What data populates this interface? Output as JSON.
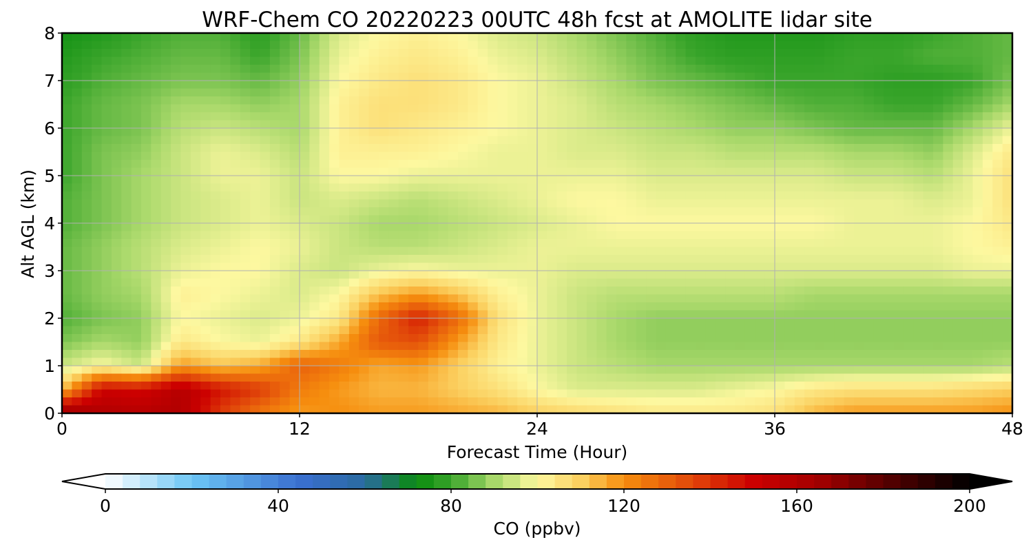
{
  "chart_data": {
    "type": "heatmap",
    "title": "WRF-Chem CO  20220223 00UTC 48h fcst at AMOLITE lidar site",
    "xlabel": "Forecast Time (Hour)",
    "ylabel": "Alt AGL (km)",
    "xlim": [
      0,
      48
    ],
    "ylim": [
      0,
      8
    ],
    "xticks": [
      "0",
      "12",
      "24",
      "36",
      "48"
    ],
    "yticks": [
      "0",
      "1",
      "2",
      "3",
      "4",
      "5",
      "6",
      "7",
      "8"
    ],
    "grid": true,
    "x": [
      0,
      2,
      4,
      6,
      8,
      10,
      12,
      14,
      16,
      18,
      20,
      22,
      24,
      26,
      28,
      30,
      32,
      34,
      36,
      38,
      40,
      42,
      44,
      46,
      48
    ],
    "y": [
      0,
      0.5,
      1,
      1.5,
      2,
      2.5,
      3,
      3.5,
      4,
      4.5,
      5,
      5.5,
      6,
      6.5,
      7,
      7.5,
      8
    ],
    "z": [
      [
        170,
        160,
        158,
        160,
        138,
        125,
        118,
        120,
        118,
        118,
        116,
        114,
        110,
        108,
        106,
        104,
        104,
        104,
        106,
        114,
        118,
        118,
        118,
        118,
        120
      ],
      [
        112,
        150,
        148,
        158,
        146,
        138,
        124,
        118,
        114,
        114,
        110,
        106,
        100,
        96,
        96,
        96,
        96,
        98,
        100,
        104,
        106,
        106,
        106,
        108,
        110
      ],
      [
        94,
        100,
        94,
        118,
        112,
        116,
        130,
        124,
        116,
        118,
        110,
        102,
        98,
        94,
        92,
        90,
        90,
        90,
        90,
        90,
        90,
        90,
        90,
        90,
        92
      ],
      [
        86,
        90,
        88,
        104,
        100,
        98,
        104,
        116,
        132,
        134,
        118,
        104,
        98,
        94,
        90,
        88,
        88,
        88,
        88,
        88,
        88,
        88,
        88,
        88,
        88
      ],
      [
        82,
        86,
        88,
        100,
        98,
        96,
        98,
        104,
        128,
        144,
        128,
        106,
        98,
        94,
        90,
        88,
        88,
        88,
        88,
        88,
        88,
        88,
        88,
        88,
        88
      ],
      [
        84,
        88,
        90,
        102,
        100,
        98,
        96,
        100,
        112,
        118,
        112,
        102,
        98,
        94,
        92,
        92,
        92,
        92,
        92,
        90,
        90,
        90,
        90,
        90,
        90
      ],
      [
        84,
        88,
        92,
        98,
        100,
        100,
        96,
        94,
        98,
        100,
        98,
        98,
        98,
        96,
        96,
        96,
        96,
        96,
        96,
        96,
        96,
        96,
        96,
        98,
        98
      ],
      [
        84,
        88,
        92,
        96,
        98,
        100,
        98,
        94,
        92,
        92,
        94,
        96,
        98,
        98,
        98,
        98,
        98,
        98,
        98,
        98,
        98,
        98,
        98,
        100,
        102
      ],
      [
        82,
        86,
        90,
        94,
        96,
        98,
        96,
        94,
        90,
        90,
        92,
        94,
        96,
        98,
        100,
        100,
        100,
        100,
        100,
        100,
        98,
        98,
        98,
        100,
        104
      ],
      [
        82,
        86,
        90,
        94,
        96,
        98,
        94,
        96,
        94,
        92,
        94,
        96,
        98,
        100,
        100,
        98,
        98,
        98,
        98,
        98,
        98,
        98,
        96,
        98,
        106
      ],
      [
        80,
        86,
        90,
        94,
        98,
        98,
        94,
        100,
        100,
        98,
        98,
        98,
        98,
        98,
        98,
        96,
        96,
        96,
        96,
        96,
        94,
        94,
        92,
        98,
        106
      ],
      [
        80,
        86,
        88,
        94,
        98,
        96,
        92,
        102,
        102,
        102,
        100,
        98,
        98,
        96,
        96,
        94,
        94,
        92,
        92,
        92,
        90,
        90,
        88,
        96,
        104
      ],
      [
        80,
        84,
        86,
        92,
        94,
        92,
        90,
        102,
        106,
        104,
        102,
        100,
        98,
        96,
        94,
        92,
        90,
        88,
        88,
        86,
        84,
        84,
        84,
        90,
        98
      ],
      [
        80,
        84,
        86,
        90,
        90,
        88,
        90,
        102,
        106,
        106,
        104,
        100,
        98,
        96,
        92,
        90,
        88,
        86,
        84,
        82,
        82,
        80,
        80,
        84,
        90
      ],
      [
        78,
        82,
        84,
        86,
        86,
        84,
        88,
        100,
        104,
        106,
        104,
        100,
        98,
        94,
        90,
        86,
        84,
        82,
        80,
        80,
        80,
        78,
        78,
        80,
        86
      ],
      [
        76,
        80,
        82,
        84,
        84,
        80,
        86,
        98,
        102,
        104,
        102,
        98,
        96,
        92,
        88,
        84,
        80,
        78,
        78,
        78,
        80,
        80,
        82,
        82,
        84
      ],
      [
        74,
        76,
        80,
        82,
        82,
        78,
        84,
        96,
        100,
        102,
        100,
        96,
        94,
        90,
        86,
        82,
        78,
        76,
        76,
        76,
        78,
        78,
        80,
        82,
        84
      ]
    ],
    "colorbar": {
      "label": "CO  (ppbv)",
      "ticks": [
        "0",
        "40",
        "80",
        "120",
        "160",
        "200"
      ],
      "min": 0,
      "max": 200,
      "extend": "both",
      "stops": [
        {
          "v": 0,
          "c": "#ffffff"
        },
        {
          "v": 20,
          "c": "#6cc6f5"
        },
        {
          "v": 45,
          "c": "#3a6fd0"
        },
        {
          "v": 60,
          "c": "#2a6aa0"
        },
        {
          "v": 72,
          "c": "#098c0e"
        },
        {
          "v": 80,
          "c": "#3aa52b"
        },
        {
          "v": 90,
          "c": "#a8d86a"
        },
        {
          "v": 100,
          "c": "#fdf8a0"
        },
        {
          "v": 110,
          "c": "#fbd060"
        },
        {
          "v": 120,
          "c": "#f68e0e"
        },
        {
          "v": 135,
          "c": "#e24a0a"
        },
        {
          "v": 150,
          "c": "#cc0000"
        },
        {
          "v": 165,
          "c": "#a30000"
        },
        {
          "v": 180,
          "c": "#5a0000"
        },
        {
          "v": 200,
          "c": "#000000"
        }
      ]
    }
  }
}
